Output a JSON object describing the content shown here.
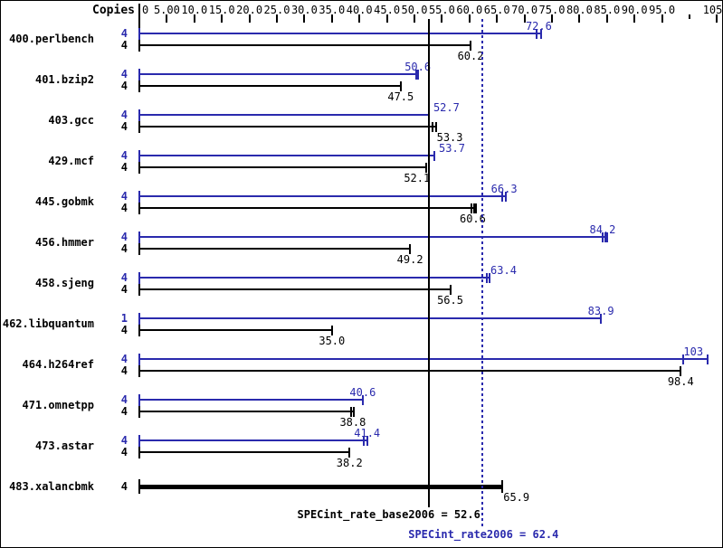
{
  "chart_data": {
    "type": "bar",
    "orientation": "horizontal",
    "copies_header": "Copies",
    "colors": {
      "peak": "#2a2aad",
      "base": "#000000"
    },
    "axis": {
      "min": 0,
      "max": 105,
      "tick_interval": 5,
      "tick_labels": [
        "0",
        "5.00",
        "10.0",
        "15.0",
        "20.0",
        "25.0",
        "30.0",
        "35.0",
        "40.0",
        "45.0",
        "50.0",
        "55.0",
        "60.0",
        "65.0",
        "70.0",
        "75.0",
        "80.0",
        "85.0",
        "90.0",
        "95.0",
        "",
        "105"
      ]
    },
    "benchmarks": [
      {
        "name": "400.perlbench",
        "peak": {
          "copies": "4",
          "label": "72.6",
          "value": 72.6,
          "marks": [
            72.2,
            73.0
          ]
        },
        "base": {
          "copies": "4",
          "label": "60.2",
          "value": 60.2,
          "marks": [
            60.2
          ]
        }
      },
      {
        "name": "401.bzip2",
        "peak": {
          "copies": "4",
          "label": "50.6",
          "value": 50.6,
          "marks": [
            50.3,
            50.7
          ]
        },
        "base": {
          "copies": "4",
          "label": "47.5",
          "value": 47.5,
          "marks": [
            47.5
          ]
        }
      },
      {
        "name": "403.gcc",
        "peak": {
          "copies": "4",
          "label": "52.7",
          "value": 52.7,
          "marks": [
            52.7
          ],
          "label_dx": 19
        },
        "base": {
          "copies": "4",
          "label": "53.3",
          "value": 53.3,
          "marks": [
            53.3,
            53.9
          ],
          "label_dx": 19
        }
      },
      {
        "name": "429.mcf",
        "peak": {
          "copies": "4",
          "label": "53.7",
          "value": 53.7,
          "marks": [
            53.7
          ],
          "label_dx": 19
        },
        "base": {
          "copies": "4",
          "label": "52.1",
          "value": 52.1,
          "marks": [
            52.1
          ],
          "label_dx": -10
        }
      },
      {
        "name": "445.gobmk",
        "peak": {
          "copies": "4",
          "label": "66.3",
          "value": 66.3,
          "marks": [
            66.0,
            66.6
          ]
        },
        "base": {
          "copies": "4",
          "label": "60.6",
          "value": 60.6,
          "marks": [
            60.3,
            60.8,
            61.2
          ]
        }
      },
      {
        "name": "456.hmmer",
        "peak": {
          "copies": "4",
          "label": "84.2",
          "value": 84.2,
          "marks": [
            84.2,
            84.7,
            85.1
          ]
        },
        "base": {
          "copies": "4",
          "label": "49.2",
          "value": 49.2,
          "marks": [
            49.2
          ]
        }
      },
      {
        "name": "458.sjeng",
        "peak": {
          "copies": "4",
          "label": "63.4",
          "value": 63.4,
          "marks": [
            63.2,
            63.6
          ],
          "label_dx": 17
        },
        "base": {
          "copies": "4",
          "label": "56.5",
          "value": 56.5,
          "marks": [
            56.5
          ]
        }
      },
      {
        "name": "462.libquantum",
        "peak": {
          "copies": "1",
          "label": "83.9",
          "value": 83.9,
          "marks": [
            83.9
          ]
        },
        "base": {
          "copies": "4",
          "label": "35.0",
          "value": 35.0,
          "marks": [
            35.0
          ]
        }
      },
      {
        "name": "464.h264ref",
        "peak": {
          "copies": "4",
          "label": "103",
          "value": 103,
          "marks": [
            98.9,
            103.3
          ],
          "label_dx": -14
        },
        "base": {
          "copies": "4",
          "label": "98.4",
          "value": 98.4,
          "marks": [
            98.4
          ]
        }
      },
      {
        "name": "471.omnetpp",
        "peak": {
          "copies": "4",
          "label": "40.6",
          "value": 40.6,
          "marks": [
            40.6
          ]
        },
        "base": {
          "copies": "4",
          "label": "38.8",
          "value": 38.8,
          "marks": [
            38.5,
            38.9
          ]
        }
      },
      {
        "name": "473.astar",
        "peak": {
          "copies": "4",
          "label": "41.4",
          "value": 41.4,
          "marks": [
            40.8,
            41.4
          ]
        },
        "base": {
          "copies": "4",
          "label": "38.2",
          "value": 38.2,
          "marks": [
            38.2
          ]
        }
      },
      {
        "name": "483.xalancbmk",
        "peak": null,
        "base": {
          "copies": "4",
          "label": "65.9",
          "value": 65.9,
          "marks": [
            65.9
          ],
          "thick": true,
          "label_dx": 16
        }
      }
    ],
    "reference_lines": [
      {
        "series": "base",
        "label": "SPECint_rate_base2006 = 52.6",
        "value": 52.6,
        "style": "solid",
        "color": "#000000"
      },
      {
        "series": "peak",
        "label": "SPECint_rate2006 = 62.4",
        "value": 62.4,
        "style": "dotted",
        "color": "#2a2aad"
      }
    ]
  }
}
